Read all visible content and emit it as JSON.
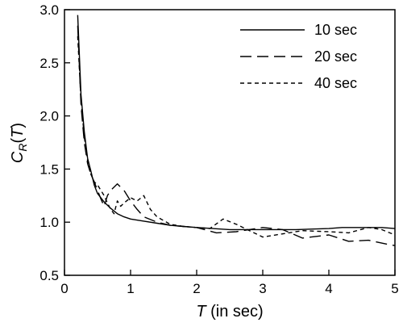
{
  "chart_data": {
    "type": "line",
    "xlabel_main": "T",
    "xlabel_rest": " (in sec)",
    "ylabel_main": "C",
    "ylabel_sub": "R",
    "ylabel_paren_open": "(",
    "ylabel_arg": "T",
    "ylabel_paren_close": ")",
    "xlim": [
      0,
      5
    ],
    "ylim": [
      0.5,
      3.0
    ],
    "xticks": [
      0,
      1,
      2,
      3,
      4,
      5
    ],
    "xtick_labels": [
      "0",
      "1",
      "2",
      "3",
      "4",
      "5"
    ],
    "yticks": [
      0.5,
      1.0,
      1.5,
      2.0,
      2.5,
      3.0
    ],
    "ytick_labels": [
      "0.5",
      "1.0",
      "1.5",
      "2.0",
      "2.5",
      "3.0"
    ],
    "grid": false,
    "legend_position": "top-right",
    "series": [
      {
        "name": "10 sec",
        "dash": "solid",
        "x": [
          0.2,
          0.25,
          0.3,
          0.35,
          0.4,
          0.45,
          0.5,
          0.6,
          0.7,
          0.8,
          0.9,
          1.0,
          1.2,
          1.4,
          1.6,
          1.8,
          2.0,
          2.5,
          3.0,
          3.5,
          4.0,
          4.2,
          4.5,
          4.8,
          5.0
        ],
        "y": [
          2.95,
          2.2,
          1.85,
          1.6,
          1.48,
          1.35,
          1.27,
          1.19,
          1.13,
          1.08,
          1.05,
          1.03,
          1.01,
          0.99,
          0.97,
          0.96,
          0.95,
          0.93,
          0.93,
          0.93,
          0.94,
          0.95,
          0.95,
          0.95,
          0.94
        ]
      },
      {
        "name": "20 sec",
        "dash": "long-dash",
        "x": [
          0.2,
          0.25,
          0.3,
          0.35,
          0.4,
          0.45,
          0.5,
          0.55,
          0.6,
          0.65,
          0.7,
          0.8,
          0.9,
          1.0,
          1.1,
          1.2,
          1.4,
          1.6,
          1.8,
          2.0,
          2.3,
          2.6,
          3.0,
          3.3,
          3.6,
          4.0,
          4.3,
          4.6,
          4.9,
          5.0
        ],
        "y": [
          2.85,
          2.1,
          1.75,
          1.55,
          1.45,
          1.38,
          1.3,
          1.22,
          1.15,
          1.25,
          1.3,
          1.36,
          1.3,
          1.2,
          1.12,
          1.05,
          1.0,
          0.97,
          0.96,
          0.95,
          0.9,
          0.91,
          0.95,
          0.93,
          0.85,
          0.88,
          0.82,
          0.83,
          0.79,
          0.78
        ]
      },
      {
        "name": "40 sec",
        "dash": "short-dash",
        "x": [
          0.2,
          0.25,
          0.3,
          0.35,
          0.4,
          0.45,
          0.5,
          0.55,
          0.6,
          0.65,
          0.7,
          0.75,
          0.8,
          0.85,
          0.9,
          1.0,
          1.1,
          1.2,
          1.3,
          1.4,
          1.6,
          1.8,
          2.0,
          2.2,
          2.4,
          2.6,
          2.8,
          3.0,
          3.3,
          3.6,
          4.0,
          4.3,
          4.6,
          4.8,
          5.0
        ],
        "y": [
          2.75,
          2.15,
          1.8,
          1.58,
          1.45,
          1.38,
          1.35,
          1.3,
          1.25,
          1.18,
          1.12,
          1.08,
          1.2,
          1.15,
          1.18,
          1.23,
          1.2,
          1.25,
          1.12,
          1.05,
          0.98,
          0.96,
          0.95,
          0.94,
          1.03,
          0.98,
          0.92,
          0.86,
          0.89,
          0.92,
          0.91,
          0.9,
          0.95,
          0.93,
          0.88
        ]
      }
    ]
  }
}
